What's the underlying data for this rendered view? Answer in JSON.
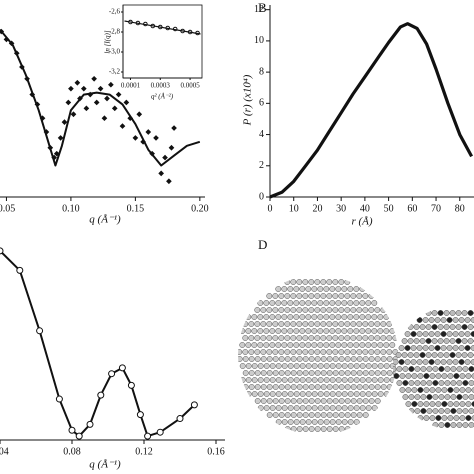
{
  "chart_data": [
    {
      "type": "scatter",
      "xlabel": "q (Å⁻¹)",
      "xlim": [
        0.045,
        0.204
      ],
      "ylim": [
        0,
        100
      ],
      "xticks": [
        0.05,
        {
          "value": 0.1,
          "label": "0.10"
        },
        0.15,
        {
          "value": 0.2,
          "label": "0.20"
        }
      ],
      "series": [
        {
          "kind": "points",
          "marker": "diamond",
          "color": "#111",
          "x": [
            0.046,
            0.05,
            0.054,
            0.058,
            0.062,
            0.066,
            0.07,
            0.074,
            0.078,
            0.081,
            0.084,
            0.087,
            0.089,
            0.092,
            0.095,
            0.098,
            0.1,
            0.102,
            0.105,
            0.107,
            0.11,
            0.112,
            0.115,
            0.118,
            0.12,
            0.123,
            0.126,
            0.128,
            0.131,
            0.134,
            0.137,
            0.14,
            0.143,
            0.146,
            0.15,
            0.153,
            0.156,
            0.16,
            0.163,
            0.166,
            0.17,
            0.173,
            0.176,
            0.178,
            0.18
          ],
          "values": [
            84,
            80,
            78,
            73,
            66,
            60,
            52,
            47,
            40,
            33,
            25,
            20,
            22,
            30,
            38,
            48,
            55,
            42,
            58,
            50,
            55,
            45,
            52,
            60,
            48,
            55,
            40,
            50,
            57,
            45,
            52,
            36,
            48,
            40,
            30,
            42,
            28,
            33,
            22,
            30,
            12,
            20,
            8,
            25,
            35
          ]
        },
        {
          "kind": "line",
          "color": "#111",
          "x": [
            0.045,
            0.055,
            0.065,
            0.075,
            0.082,
            0.088,
            0.093,
            0.1,
            0.11,
            0.12,
            0.13,
            0.14,
            0.15,
            0.16,
            0.17,
            0.18,
            0.19,
            0.2
          ],
          "values": [
            85,
            77,
            62,
            44,
            29,
            16,
            26,
            44,
            52,
            53,
            52,
            47,
            37,
            24,
            16,
            21,
            26,
            28
          ]
        }
      ]
    },
    {
      "type": "scatter",
      "xlabel": "q² (Å⁻²)",
      "ylabel": "ln [I(q)]",
      "xlim": [
        5e-05,
        0.00058
      ],
      "ylim": [
        -3.26,
        -2.53
      ],
      "xticks": [
        0.0001,
        0.0003,
        0.0005
      ],
      "yticks": [
        {
          "value": -2.6,
          "label": "-2,6"
        },
        {
          "value": -2.8,
          "label": "-2,8"
        },
        {
          "value": -3,
          "label": "-3,0"
        },
        {
          "value": -3.2,
          "label": "-3,2"
        }
      ],
      "series": [
        {
          "kind": "points",
          "marker": "circle",
          "color": "#111",
          "x": [
            0.0001,
            0.00015,
            0.0002,
            0.00025,
            0.0003,
            0.00035,
            0.0004,
            0.00045,
            0.0005,
            0.00055
          ],
          "values": [
            -2.7,
            -2.71,
            -2.72,
            -2.74,
            -2.75,
            -2.76,
            -2.77,
            -2.79,
            -2.8,
            -2.81
          ]
        },
        {
          "kind": "line",
          "color": "#111",
          "x": [
            6e-05,
            0.00057
          ],
          "values": [
            -2.69,
            -2.82
          ]
        }
      ]
    },
    {
      "type": "line",
      "xlabel": "r (Å)",
      "ylabel": "P (r) (x10⁴)",
      "xlim": [
        0,
        86
      ],
      "ylim": [
        0,
        12.3
      ],
      "xticks": [
        0,
        10,
        20,
        30,
        40,
        50,
        60,
        70,
        80
      ],
      "yticks": [
        0,
        2,
        4,
        6,
        8,
        10,
        12
      ],
      "series": [
        {
          "kind": "line",
          "color": "#111",
          "x": [
            0,
            5,
            10,
            15,
            20,
            25,
            30,
            35,
            40,
            45,
            50,
            55,
            58,
            62,
            66,
            70,
            75,
            80,
            85
          ],
          "values": [
            0,
            0.3,
            1.0,
            2.0,
            3.0,
            4.2,
            5.4,
            6.6,
            7.7,
            8.8,
            9.9,
            10.9,
            11.1,
            10.8,
            9.8,
            8.2,
            6.0,
            4.0,
            2.6
          ]
        }
      ]
    },
    {
      "type": "line",
      "xlabel": "q (Å⁻¹)",
      "xlim": [
        0.04,
        0.165
      ],
      "ylim": [
        0,
        100
      ],
      "xticks": [
        0.04,
        0.08,
        0.12,
        0.16
      ],
      "series": [
        {
          "kind": "line",
          "marker": "circle",
          "color": "#111",
          "x": [
            0.04,
            0.051,
            0.062,
            0.073,
            0.08,
            0.084,
            0.09,
            0.096,
            0.102,
            0.108,
            0.113,
            0.118,
            0.122,
            0.129,
            0.14,
            0.148
          ],
          "values": [
            97,
            87,
            56,
            21,
            5,
            2,
            8,
            23,
            34,
            37,
            28,
            13,
            2,
            4,
            11,
            18
          ]
        }
      ]
    }
  ],
  "panel_labels": [
    "B",
    "D"
  ]
}
